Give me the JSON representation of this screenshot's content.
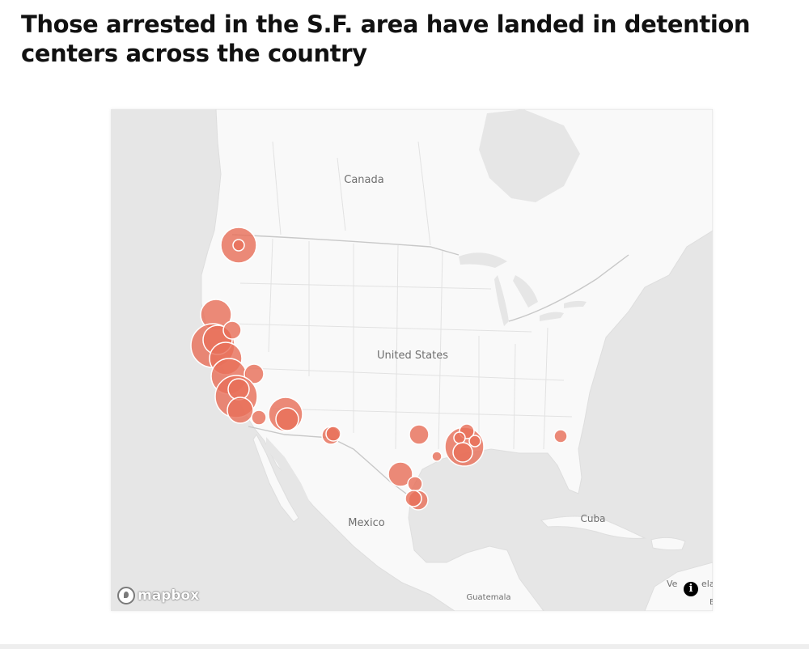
{
  "headline": "Those arrested in the S.F. area have landed in detention centers across the country",
  "colors": {
    "water": "#e6e6e6",
    "land": "#f9f9f9",
    "border": "#cfcfcf",
    "marker": "#e8705a"
  },
  "map_labels": {
    "canada": "Canada",
    "united_states": "United States",
    "mexico": "Mexico",
    "cuba": "Cuba",
    "guatemala": "Guatemala",
    "venezuela_left": "Ve",
    "venezuela_right": "ela",
    "venezuela_below": "E"
  },
  "attribution": {
    "logo_text": "mapbox",
    "info_icon": "info-icon",
    "info_glyph": "i"
  }
}
